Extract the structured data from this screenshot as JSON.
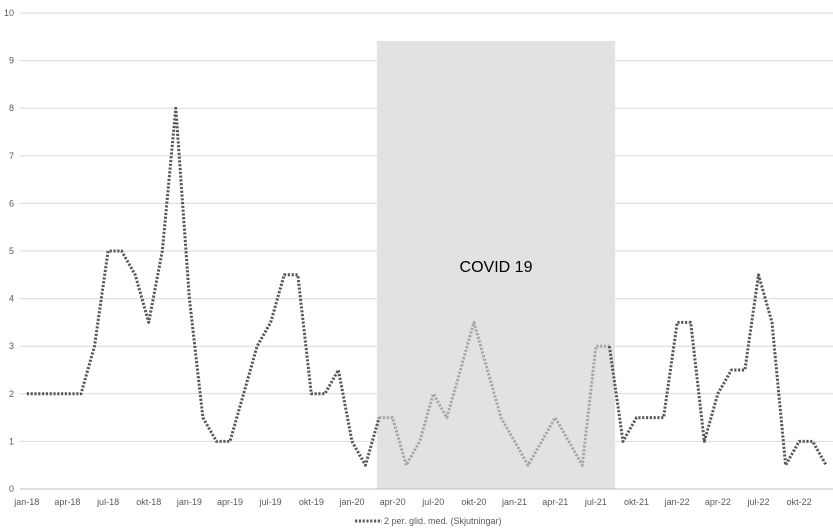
{
  "chart_data": {
    "type": "line",
    "title": "",
    "xlabel": "",
    "ylabel": "",
    "ylim": [
      0,
      10
    ],
    "yticks": [
      0,
      1,
      2,
      3,
      4,
      5,
      6,
      7,
      8,
      9,
      10
    ],
    "grid": true,
    "legend_position": "bottom",
    "x_labels": [
      "jan-18",
      "apr-18",
      "jul-18",
      "okt-18",
      "jan-19",
      "apr-19",
      "jul-19",
      "okt-19",
      "jan-20",
      "apr-20",
      "jul-20",
      "okt-20",
      "jan-21",
      "apr-21",
      "jul-21",
      "okt-21",
      "jan-22",
      "apr-22",
      "jul-22",
      "okt-22"
    ],
    "months": [
      "jan-18",
      "feb-18",
      "mar-18",
      "apr-18",
      "maj-18",
      "jun-18",
      "jul-18",
      "aug-18",
      "sep-18",
      "okt-18",
      "nov-18",
      "dec-18",
      "jan-19",
      "feb-19",
      "mar-19",
      "apr-19",
      "maj-19",
      "jun-19",
      "jul-19",
      "aug-19",
      "sep-19",
      "okt-19",
      "nov-19",
      "dec-19",
      "jan-20",
      "feb-20",
      "mar-20",
      "apr-20",
      "maj-20",
      "jun-20",
      "jul-20",
      "aug-20",
      "sep-20",
      "okt-20",
      "nov-20",
      "dec-20",
      "jan-21",
      "feb-21",
      "mar-21",
      "apr-21",
      "maj-21",
      "jun-21",
      "jul-21",
      "aug-21",
      "sep-21",
      "okt-21",
      "nov-21",
      "dec-21",
      "jan-22",
      "feb-22",
      "mar-22",
      "apr-22",
      "maj-22",
      "jun-22",
      "jul-22",
      "aug-22",
      "sep-22",
      "okt-22",
      "nov-22",
      "dec-22"
    ],
    "series": [
      {
        "name": "2 per. glid. med. (Skjutningar)",
        "color": "#595959",
        "values": [
          2,
          2,
          2,
          2,
          2,
          3,
          5,
          5,
          4.5,
          3.5,
          5,
          8,
          4,
          1.5,
          1,
          1,
          2,
          3,
          3.5,
          4.5,
          4.5,
          2,
          2,
          2.5,
          1,
          0.5,
          1.5,
          1.5,
          0.5,
          1,
          2,
          1.5,
          2.5,
          3.5,
          2.5,
          1.5,
          1,
          0.5,
          1,
          1.5,
          1,
          0.5,
          3,
          3,
          1,
          1.5,
          1.5,
          1.5,
          3.5,
          3.5,
          1,
          2,
          2.5,
          2.5,
          4.5,
          3.5,
          0.5,
          1,
          1,
          0.5
        ]
      }
    ],
    "annotations": [
      {
        "text": "COVID 19",
        "x_start": "mar-20",
        "x_end": "aug-21",
        "shade_color": "#e2e2e2"
      }
    ],
    "highlight_color": "#a6a6a6"
  }
}
